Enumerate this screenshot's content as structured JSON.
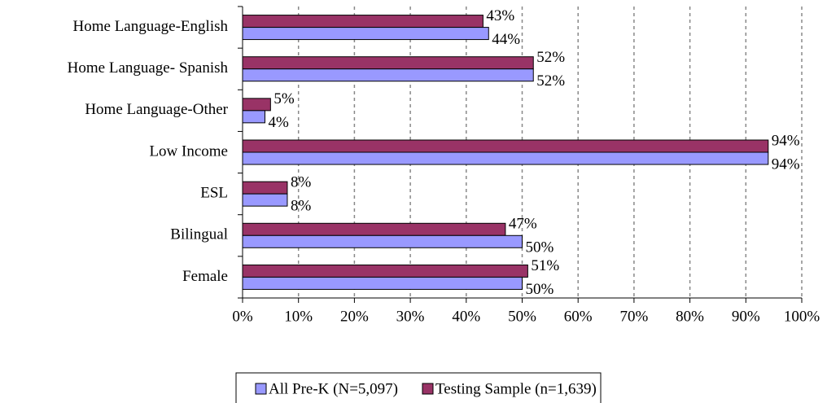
{
  "chart_data": {
    "type": "bar",
    "orientation": "horizontal",
    "categories": [
      "Home Language-English",
      "Home Language- Spanish",
      "Home Language-Other",
      "Low Income",
      "ESL",
      "Bilingual",
      "Female"
    ],
    "series": [
      {
        "name": "All Pre-K (N=5,097)",
        "color": "#9999ff",
        "values": [
          44,
          52,
          4,
          94,
          8,
          50,
          50
        ],
        "value_labels": [
          "44%",
          "52%",
          "4%",
          "94%",
          "8%",
          "50%",
          "50%"
        ]
      },
      {
        "name": "Testing Sample (n=1,639)",
        "color": "#993366",
        "values": [
          43,
          52,
          5,
          94,
          8,
          47,
          51
        ],
        "value_labels": [
          "43%",
          "52%",
          "5%",
          "94%",
          "8%",
          "47%",
          "51%"
        ]
      }
    ],
    "xlim": [
      0,
      100
    ],
    "xticks": [
      {
        "value": 0,
        "label": "0%"
      },
      {
        "value": 10,
        "label": "10%"
      },
      {
        "value": 20,
        "label": "20%"
      },
      {
        "value": 30,
        "label": "30%"
      },
      {
        "value": 40,
        "label": "40%"
      },
      {
        "value": 50,
        "label": "50%"
      },
      {
        "value": 60,
        "label": "60%"
      },
      {
        "value": 70,
        "label": "70%"
      },
      {
        "value": 80,
        "label": "80%"
      },
      {
        "value": 90,
        "label": "90%"
      },
      {
        "value": 100,
        "label": "100%"
      }
    ],
    "grid": true,
    "legend": "bottom"
  }
}
